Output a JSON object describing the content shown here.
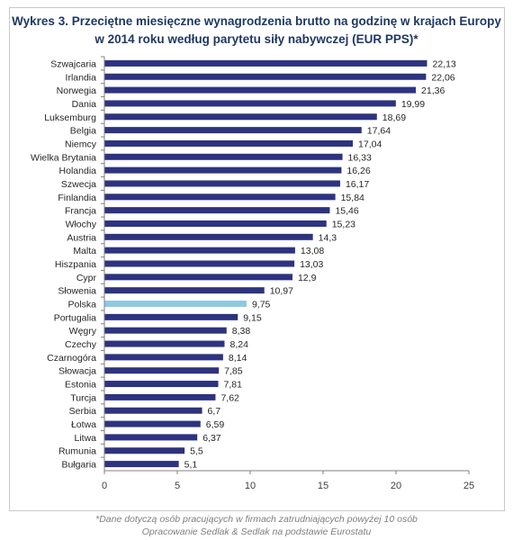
{
  "title_line1": "Wykres 3. Przeciętne miesięczne wynagrodzenia brutto na godzinę w krajach Europy",
  "title_line2": "w 2014 roku według parytetu siły nabywczej (EUR PPS)*",
  "footnote_line1": "*Dane dotyczą osób pracujących w firmach zatrudniających powyżej 10 osób",
  "footnote_line2": "Opracowanie Sedlak & Sedlak na podstawie Eurostatu",
  "colors": {
    "bar": "#2e3380",
    "highlight": "#8fc9df",
    "axis": "#808080",
    "grid": "#d9d9d9"
  },
  "chart_data": {
    "type": "bar",
    "orientation": "horizontal",
    "title": "Wykres 3. Przeciętne miesięczne wynagrodzenia brutto na godzinę w krajach Europy w 2014 roku według parytetu siły nabywczej (EUR PPS)*",
    "categories": [
      "Szwajcaria",
      "Irlandia",
      "Norwegia",
      "Dania",
      "Luksemburg",
      "Belgia",
      "Niemcy",
      "Wielka Brytania",
      "Holandia",
      "Szwecja",
      "Finlandia",
      "Francja",
      "Włochy",
      "Austria",
      "Malta",
      "Hiszpania",
      "Cypr",
      "Słowenia",
      "Polska",
      "Portugalia",
      "Węgry",
      "Czechy",
      "Czarnogóra",
      "Słowacja",
      "Estonia",
      "Turcja",
      "Serbia",
      "Łotwa",
      "Litwa",
      "Rumunia",
      "Bułgaria"
    ],
    "values": [
      22.13,
      22.06,
      21.36,
      19.99,
      18.69,
      17.64,
      17.04,
      16.33,
      16.26,
      16.17,
      15.84,
      15.46,
      15.23,
      14.3,
      13.08,
      13.03,
      12.9,
      10.97,
      9.75,
      9.15,
      8.38,
      8.24,
      8.14,
      7.85,
      7.81,
      7.62,
      6.7,
      6.59,
      6.37,
      5.5,
      5.1
    ],
    "value_labels": [
      "22,13",
      "22,06",
      "21,36",
      "19,99",
      "18,69",
      "17,64",
      "17,04",
      "16,33",
      "16,26",
      "16,17",
      "15,84",
      "15,46",
      "15,23",
      "14,3",
      "13,08",
      "13,03",
      "12,9",
      "10,97",
      "9,75",
      "9,15",
      "8,38",
      "8,24",
      "8,14",
      "7,85",
      "7,81",
      "7,62",
      "6,7",
      "6,59",
      "6,37",
      "5,5",
      "5,1"
    ],
    "highlight": "Polska",
    "xlim": [
      0,
      25
    ],
    "xticks": [
      0,
      5,
      10,
      15,
      20,
      25
    ],
    "xlabel": "",
    "ylabel": "",
    "grid": false,
    "legend": "none"
  }
}
